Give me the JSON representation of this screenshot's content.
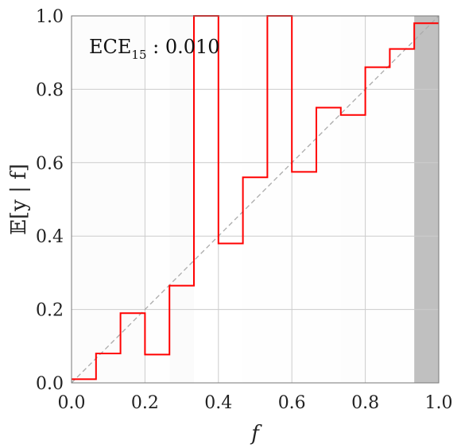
{
  "chart_data": {
    "type": "line",
    "xlabel": "f",
    "ylabel": "𝔼[y | f]",
    "xlim": [
      0,
      1
    ],
    "ylim": [
      0,
      1
    ],
    "grid": true,
    "x_ticks": [
      "0.0",
      "0.2",
      "0.4",
      "0.6",
      "0.8",
      "1.0"
    ],
    "y_ticks": [
      "0.0",
      "0.2",
      "0.4",
      "0.6",
      "0.8",
      "1.0"
    ],
    "annotation": {
      "prefix": "ECE",
      "subscript": "15",
      "suffix": " : 0.010"
    },
    "bins": {
      "count": 15,
      "edges": [
        0.0,
        0.0667,
        0.1333,
        0.2,
        0.2667,
        0.3333,
        0.4,
        0.4667,
        0.5333,
        0.6,
        0.6667,
        0.7333,
        0.8,
        0.8667,
        0.9333,
        1.0
      ],
      "empirical": [
        0.01,
        0.08,
        0.19,
        0.077,
        0.265,
        1.0,
        0.38,
        0.56,
        1.0,
        0.575,
        0.75,
        0.73,
        0.86,
        0.91,
        0.98
      ],
      "density_shade": [
        0.05,
        0.05,
        0.05,
        0.01,
        0.06,
        0.0,
        0.0,
        0.01,
        0.01,
        0.01,
        0.01,
        0.03,
        0.02,
        0.02,
        0.9
      ]
    },
    "reference_line": {
      "name": "perfect calibration",
      "x": [
        0,
        1
      ],
      "y": [
        0,
        1
      ]
    },
    "colors": {
      "step": "#ff0000",
      "diagonal": "#aaaaaa",
      "grid": "#cccccc",
      "shade": "#808080",
      "frame": "#777777"
    }
  }
}
